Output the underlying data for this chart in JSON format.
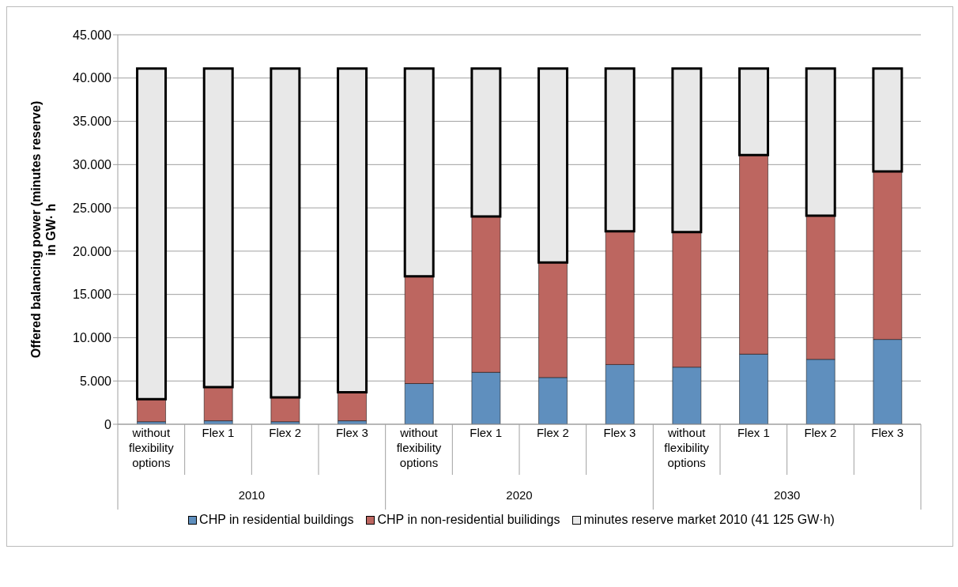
{
  "chart_data": {
    "type": "bar",
    "stacked": true,
    "ylabel": "Offered balancing power (minutes reserve) in GW· h",
    "categories": [
      "without flexibility options",
      "Flex 1",
      "Flex 2",
      "Flex 3",
      "without flexibility options",
      "Flex 1",
      "Flex 2",
      "Flex 3",
      "without flexibility options",
      "Flex 1",
      "Flex 2",
      "Flex 3"
    ],
    "annotations": [
      "2010",
      "2020",
      "2030"
    ],
    "series": [
      {
        "name": "CHP in residential buildings",
        "color": "#5f8fbe",
        "values": [
          300,
          400,
          300,
          400,
          4700,
          6000,
          5400,
          6900,
          6600,
          8100,
          7500,
          9800
        ]
      },
      {
        "name": "CHP in non-residential builidings",
        "color": "#bd6660",
        "values": [
          2600,
          3900,
          2800,
          3300,
          12400,
          18000,
          13300,
          15400,
          15600,
          23000,
          16600,
          19400
        ]
      },
      {
        "name": "minutes reserve market 2010 (41 125 GW·h)",
        "color": "#e8e8e8",
        "values": [
          38200,
          36800,
          38000,
          37400,
          24000,
          17100,
          22400,
          18800,
          18900,
          10000,
          17000,
          11900
        ]
      }
    ],
    "ylim": [
      0,
      45000
    ],
    "yticks": [
      0,
      {
        "value": 5000,
        "label": "5.000"
      },
      {
        "value": 10000,
        "label": "10.000"
      },
      {
        "value": 15000,
        "label": "15.000"
      },
      {
        "value": 20000,
        "label": "20.000"
      },
      {
        "value": 25000,
        "label": "25.000"
      },
      {
        "value": 30000,
        "label": "30.000"
      },
      {
        "value": 35000,
        "label": "35.000"
      },
      {
        "value": 40000,
        "label": "40.000"
      },
      {
        "value": 45000,
        "label": "45.000"
      }
    ],
    "grid": "y",
    "legend": "bottom"
  }
}
